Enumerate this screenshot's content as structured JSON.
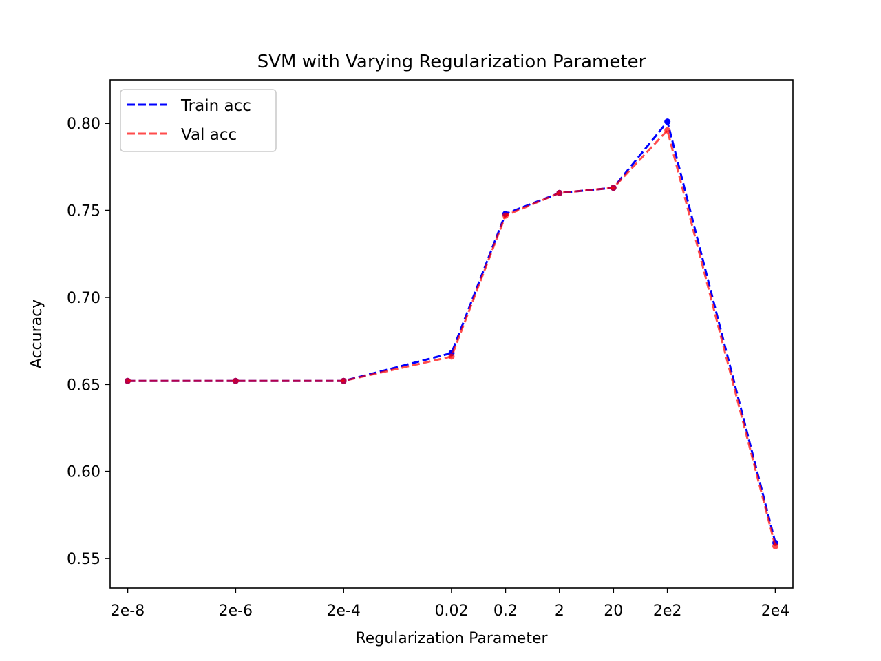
{
  "chart_data": {
    "type": "line",
    "title": "SVM with Varying Regularization Parameter",
    "xlabel": "Regularization Parameter",
    "ylabel": "Accuracy",
    "x_scale": "log",
    "x": [
      2e-08,
      2e-06,
      0.0002,
      0.02,
      0.2,
      2,
      20,
      200,
      20000
    ],
    "x_tick_labels": [
      "2e-8",
      "2e-6",
      "2e-4",
      "0.02",
      "0.2",
      "2",
      "20",
      "2e2",
      "2e4"
    ],
    "ylim": [
      0.533,
      0.825
    ],
    "y_ticks": [
      0.55,
      0.6,
      0.65,
      0.7,
      0.75,
      0.8
    ],
    "y_tick_labels": [
      "0.55",
      "0.60",
      "0.65",
      "0.70",
      "0.75",
      "0.80"
    ],
    "grid": false,
    "legend_position": "top-left",
    "series": [
      {
        "name": "Train acc",
        "color": "#0000ff",
        "line_style": "dashed",
        "marker": "dot",
        "values": [
          0.652,
          0.652,
          0.652,
          0.668,
          0.748,
          0.76,
          0.763,
          0.801,
          0.559
        ]
      },
      {
        "name": "Val acc",
        "color": "#ff0000",
        "line_style": "dashed",
        "opacity": 0.7,
        "marker": "dot",
        "values": [
          0.652,
          0.652,
          0.652,
          0.666,
          0.747,
          0.76,
          0.763,
          0.796,
          0.557
        ]
      }
    ]
  }
}
